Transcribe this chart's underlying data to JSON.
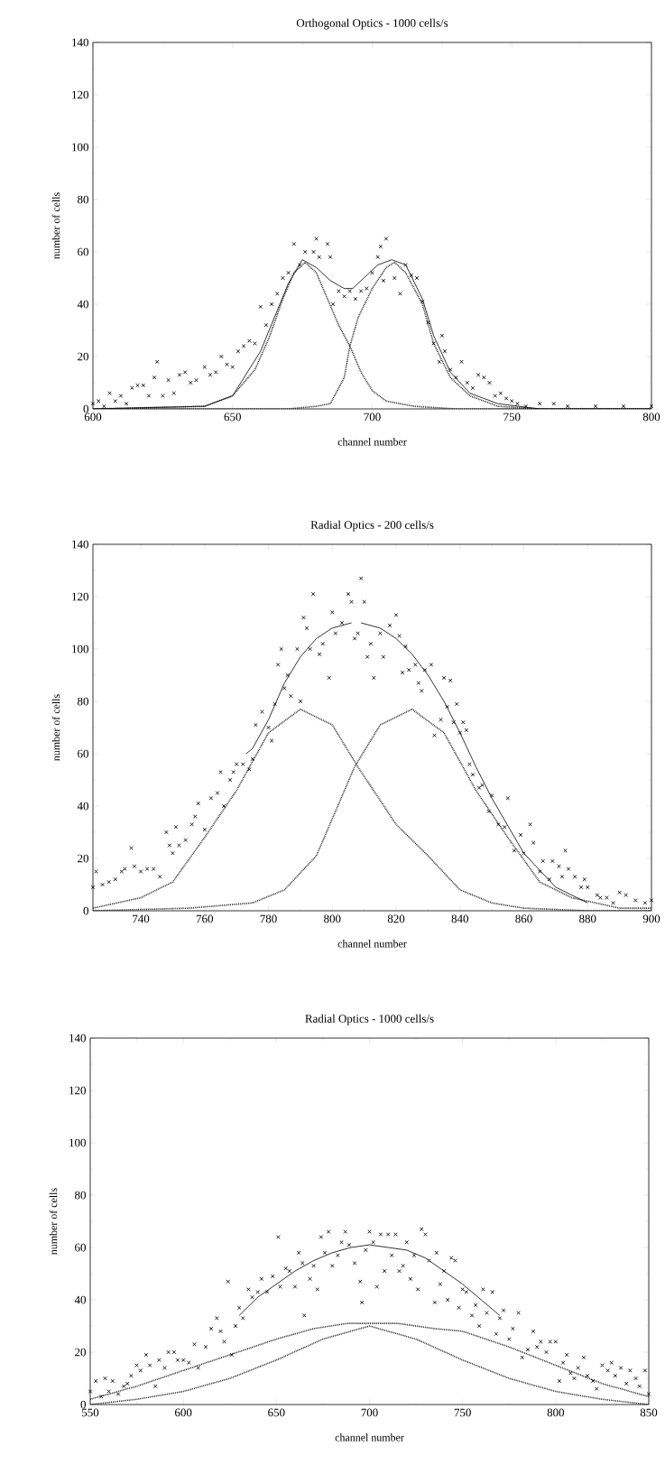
{
  "chart_data": [
    {
      "type": "scatter",
      "title": "Orthogonal Optics - 1000 cells/s",
      "xlabel": "channel number",
      "ylabel": "number of cells",
      "xlim": [
        600,
        800
      ],
      "ylim": [
        0,
        140
      ],
      "xticks": [
        600,
        650,
        700,
        750,
        800
      ],
      "yticks": [
        0,
        20,
        40,
        60,
        80,
        100,
        120,
        140
      ],
      "grid": false,
      "series": [
        {
          "marker": "cross",
          "color": "#000000",
          "x": [
            600,
            602,
            604,
            606,
            608,
            610,
            612,
            614,
            616,
            618,
            620,
            622,
            623,
            625,
            627,
            629,
            631,
            633,
            635,
            637,
            640,
            642,
            644,
            646,
            648,
            650,
            652,
            654,
            656,
            658,
            660,
            662,
            664,
            666,
            668,
            670,
            672,
            674,
            676,
            679,
            680,
            681,
            684,
            685,
            686,
            688,
            690,
            692,
            694,
            696,
            698,
            700,
            702,
            703,
            705,
            704,
            708,
            710,
            712,
            714,
            716,
            718,
            720,
            722,
            724,
            725,
            726,
            728,
            730,
            732,
            734,
            736,
            738,
            740,
            742,
            744,
            746,
            748,
            750,
            752,
            755,
            760,
            765,
            770,
            780,
            790,
            800
          ],
          "values": [
            2,
            3,
            1,
            6,
            3,
            5,
            2,
            8,
            9,
            9,
            5,
            12,
            18,
            5,
            11,
            6,
            13,
            14,
            10,
            11,
            16,
            13,
            14,
            20,
            17,
            16,
            22,
            24,
            26,
            25,
            39,
            32,
            40,
            44,
            50,
            52,
            63,
            55,
            60,
            60,
            65,
            58,
            63,
            58,
            40,
            45,
            43,
            45,
            42,
            45,
            46,
            52,
            58,
            62,
            65,
            49,
            50,
            44,
            55,
            51,
            50,
            41,
            33,
            25,
            18,
            28,
            22,
            15,
            12,
            18,
            10,
            8,
            13,
            12,
            10,
            5,
            6,
            4,
            3,
            2,
            1,
            2,
            2,
            1,
            1,
            1,
            1
          ]
        },
        {
          "type": "line",
          "line_style": "solid",
          "color": "#000000",
          "x": [
            600,
            640,
            650,
            660,
            665,
            670,
            675,
            680,
            685,
            690,
            693,
            697,
            702,
            707,
            712,
            718,
            722,
            728,
            735,
            745,
            760,
            800
          ],
          "values": [
            0,
            1,
            5,
            22,
            35,
            48,
            57,
            54,
            49,
            46,
            46,
            50,
            55,
            57,
            55,
            42,
            28,
            14,
            6,
            2,
            0,
            0
          ]
        },
        {
          "type": "line",
          "line_style": "dotted",
          "color": "#000000",
          "x": [
            600,
            640,
            650,
            658,
            663,
            668,
            672,
            676,
            680,
            684,
            688,
            692,
            696,
            700,
            705,
            715,
            730,
            800
          ],
          "values": [
            0,
            1,
            5,
            15,
            27,
            42,
            52,
            56,
            52,
            42,
            32,
            24,
            14,
            7,
            3,
            1,
            0,
            0
          ]
        },
        {
          "type": "line",
          "line_style": "dotted",
          "color": "#000000",
          "x": [
            600,
            670,
            680,
            685,
            690,
            692,
            695,
            700,
            705,
            708,
            712,
            718,
            722,
            728,
            735,
            745,
            760,
            800
          ],
          "values": [
            0,
            0,
            1,
            2,
            12,
            24,
            35,
            46,
            54,
            56,
            52,
            40,
            25,
            12,
            5,
            1,
            0,
            0
          ]
        }
      ]
    },
    {
      "type": "scatter",
      "title": "Radial Optics - 200 cells/s",
      "xlabel": "channel number",
      "ylabel": "number of cells",
      "xlim": [
        725,
        900
      ],
      "ylim": [
        0,
        140
      ],
      "xticks": [
        740,
        760,
        780,
        800,
        820,
        840,
        860,
        880,
        900
      ],
      "yticks": [
        0,
        20,
        40,
        60,
        80,
        100,
        120,
        140
      ],
      "grid": false,
      "series": [
        {
          "marker": "cross",
          "color": "#000000",
          "x": [
            725,
            726,
            728,
            730,
            732,
            734,
            735,
            737,
            738,
            740,
            742,
            744,
            746,
            748,
            749,
            750,
            751,
            752,
            754,
            756,
            757,
            758,
            760,
            762,
            764,
            765,
            766,
            768,
            769,
            770,
            772,
            774,
            775,
            776,
            778,
            780,
            781,
            782,
            783,
            784,
            785,
            786,
            787,
            789,
            790,
            791,
            792,
            793,
            794,
            796,
            797,
            799,
            800,
            801,
            803,
            805,
            806,
            807,
            808,
            809,
            810,
            811,
            812,
            813,
            815,
            816,
            818,
            820,
            821,
            822,
            823,
            824,
            826,
            827,
            828,
            829,
            831,
            832,
            834,
            835,
            836,
            837,
            838,
            839,
            840,
            841,
            842,
            843,
            844,
            846,
            847,
            849,
            850,
            852,
            854,
            855,
            857,
            859,
            860,
            862,
            863,
            865,
            866,
            868,
            869,
            871,
            872,
            873,
            874,
            876,
            878,
            879,
            880,
            883,
            884,
            886,
            888,
            890,
            892,
            895,
            898,
            900
          ],
          "values": [
            9,
            15,
            10,
            11,
            12,
            15,
            16,
            24,
            17,
            15,
            16,
            16,
            13,
            30,
            25,
            22,
            32,
            25,
            27,
            33,
            36,
            41,
            31,
            43,
            45,
            53,
            40,
            50,
            53,
            56,
            56,
            54,
            58,
            71,
            76,
            70,
            65,
            79,
            94,
            100,
            85,
            90,
            82,
            100,
            80,
            112,
            108,
            100,
            121,
            98,
            102,
            89,
            114,
            106,
            110,
            121,
            118,
            104,
            106,
            127,
            118,
            97,
            102,
            89,
            106,
            97,
            109,
            113,
            105,
            91,
            101,
            92,
            94,
            87,
            84,
            92,
            94,
            67,
            73,
            89,
            78,
            88,
            72,
            79,
            68,
            72,
            69,
            56,
            52,
            47,
            48,
            38,
            44,
            33,
            32,
            43,
            23,
            29,
            22,
            33,
            26,
            15,
            19,
            12,
            19,
            17,
            13,
            23,
            16,
            13,
            9,
            12,
            9,
            6,
            5,
            5,
            3,
            7,
            6,
            4,
            3,
            4
          ]
        },
        {
          "type": "line",
          "line_style": "solid",
          "color": "#000000",
          "x": [
            773,
            775,
            780,
            785,
            790,
            795,
            800,
            806
          ],
          "values": [
            60,
            62,
            73,
            87,
            97,
            104,
            108,
            110
          ]
        },
        {
          "type": "line",
          "line_style": "solid",
          "color": "#000000",
          "x": [
            809,
            815,
            820,
            825,
            830,
            835,
            840,
            845,
            850,
            860,
            870,
            880
          ],
          "values": [
            110,
            108,
            104,
            98,
            90,
            80,
            68,
            55,
            43,
            22,
            9,
            3
          ]
        },
        {
          "type": "line",
          "line_style": "dotted",
          "color": "#000000",
          "x": [
            725,
            740,
            750,
            760,
            770,
            780,
            790,
            800,
            808,
            820,
            830,
            840,
            850,
            860,
            880,
            900
          ],
          "values": [
            1,
            5,
            11,
            28,
            46,
            68,
            77,
            71,
            55,
            33,
            21,
            8,
            3,
            1,
            0,
            0
          ]
        },
        {
          "type": "line",
          "line_style": "dotted",
          "color": "#000000",
          "x": [
            725,
            755,
            775,
            785,
            795,
            807,
            815,
            825,
            835,
            845,
            855,
            865,
            875,
            890,
            900
          ],
          "values": [
            0,
            1,
            3,
            8,
            21,
            55,
            71,
            77,
            68,
            46,
            28,
            11,
            5,
            1,
            1
          ]
        }
      ]
    },
    {
      "type": "scatter",
      "title": "Radial Optics - 1000 cells/s",
      "xlabel": "channel number",
      "ylabel": "number of cells",
      "xlim": [
        550,
        850
      ],
      "ylim": [
        0,
        140
      ],
      "xticks": [
        550,
        600,
        650,
        700,
        750,
        800,
        850
      ],
      "yticks": [
        0,
        20,
        40,
        60,
        80,
        100,
        120,
        140
      ],
      "grid": false,
      "series": [
        {
          "marker": "cross",
          "color": "#000000",
          "x": [
            550,
            553,
            556,
            558,
            560,
            562,
            565,
            568,
            570,
            572,
            575,
            577,
            580,
            582,
            585,
            587,
            590,
            592,
            595,
            597,
            600,
            603,
            606,
            608,
            612,
            615,
            618,
            620,
            622,
            624,
            626,
            628,
            630,
            632,
            635,
            637,
            640,
            642,
            645,
            648,
            651,
            652,
            655,
            657,
            660,
            662,
            664,
            665,
            668,
            670,
            672,
            674,
            676,
            678,
            680,
            683,
            685,
            687,
            689,
            692,
            695,
            696,
            698,
            700,
            702,
            704,
            706,
            708,
            710,
            712,
            714,
            716,
            718,
            720,
            722,
            724,
            726,
            728,
            730,
            732,
            735,
            736,
            738,
            740,
            742,
            744,
            746,
            748,
            750,
            752,
            755,
            757,
            759,
            761,
            763,
            766,
            768,
            770,
            772,
            775,
            777,
            780,
            782,
            785,
            788,
            790,
            792,
            795,
            797,
            800,
            802,
            804,
            806,
            808,
            810,
            812,
            815,
            817,
            820,
            822,
            825,
            828,
            830,
            832,
            835,
            838,
            840,
            843,
            845,
            848,
            850
          ],
          "values": [
            5,
            9,
            3,
            10,
            5,
            9,
            4,
            7,
            8,
            11,
            15,
            13,
            19,
            15,
            7,
            17,
            14,
            20,
            20,
            17,
            17,
            16,
            23,
            14,
            22,
            29,
            33,
            28,
            24,
            47,
            19,
            30,
            37,
            33,
            44,
            41,
            43,
            48,
            43,
            49,
            64,
            45,
            52,
            51,
            45,
            58,
            54,
            34,
            48,
            53,
            44,
            64,
            58,
            66,
            53,
            57,
            62,
            66,
            61,
            54,
            47,
            39,
            59,
            66,
            62,
            45,
            65,
            51,
            65,
            57,
            65,
            51,
            53,
            62,
            48,
            57,
            44,
            67,
            65,
            55,
            39,
            58,
            46,
            51,
            40,
            56,
            55,
            37,
            44,
            43,
            34,
            38,
            30,
            44,
            35,
            43,
            27,
            33,
            36,
            25,
            29,
            35,
            18,
            21,
            28,
            22,
            24,
            20,
            24,
            24,
            9,
            16,
            19,
            12,
            10,
            14,
            18,
            11,
            9,
            6,
            15,
            13,
            16,
            11,
            14,
            8,
            13,
            10,
            7,
            13,
            4
          ]
        },
        {
          "type": "line",
          "line_style": "solid",
          "color": "#000000",
          "x": [
            630,
            640,
            650,
            660,
            670,
            680,
            690,
            700,
            710,
            720,
            730,
            740,
            750,
            760,
            770
          ],
          "values": [
            34,
            41,
            46,
            51,
            55,
            58,
            60,
            61,
            60,
            59,
            56,
            51,
            46,
            40,
            34
          ]
        },
        {
          "type": "line",
          "line_style": "dotted",
          "color": "#000000",
          "x": [
            550,
            575,
            600,
            625,
            650,
            670,
            688,
            700,
            715,
            735,
            750,
            775,
            800,
            825,
            850
          ],
          "values": [
            2,
            7,
            13,
            19,
            25,
            29,
            31,
            31,
            31,
            29,
            28,
            22,
            15,
            8,
            3
          ]
        },
        {
          "type": "line",
          "line_style": "dotted",
          "color": "#000000",
          "x": [
            550,
            575,
            600,
            625,
            650,
            675,
            700,
            725,
            750,
            775,
            800,
            825,
            850
          ],
          "values": [
            0,
            2,
            5,
            10,
            17,
            25,
            30,
            25,
            17,
            10,
            5,
            2,
            0
          ]
        }
      ]
    }
  ]
}
